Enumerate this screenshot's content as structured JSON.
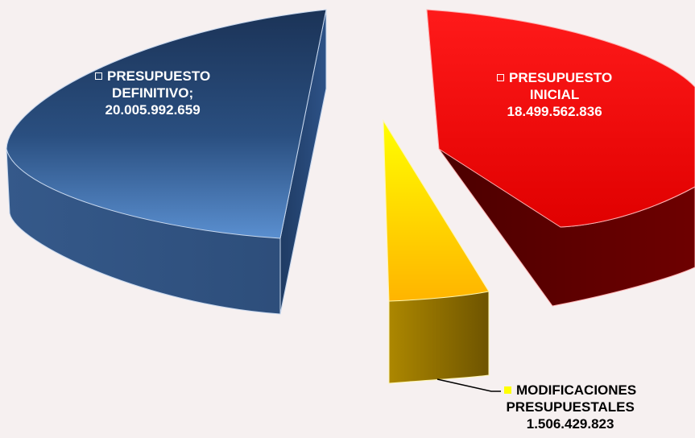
{
  "chart_data": {
    "type": "pie",
    "style": "3d-exploded",
    "categories": [
      "PRESUPUESTO DEFINITIVO",
      "PRESUPUESTO INICIAL",
      "MODIFICACIONES PRESUPUESTALES"
    ],
    "values": [
      20005992659,
      18499562836,
      1506429823
    ],
    "data_labels": [
      {
        "lines": [
          "PRESUPUESTO",
          "DEFINITIVO;",
          "20.005.992.659"
        ],
        "color": "#ffffff"
      },
      {
        "lines": [
          "PRESUPUESTO",
          "INICIAL",
          "18.499.562.836"
        ],
        "color": "#ffffff"
      },
      {
        "lines": [
          "MODIFICACIONES",
          "PRESUPUESTALES",
          "1.506.429.823"
        ],
        "color": "#000000"
      }
    ],
    "colors": [
      "#2f5a93",
      "#ff0000",
      "#ffd000"
    ],
    "legend": "none"
  }
}
